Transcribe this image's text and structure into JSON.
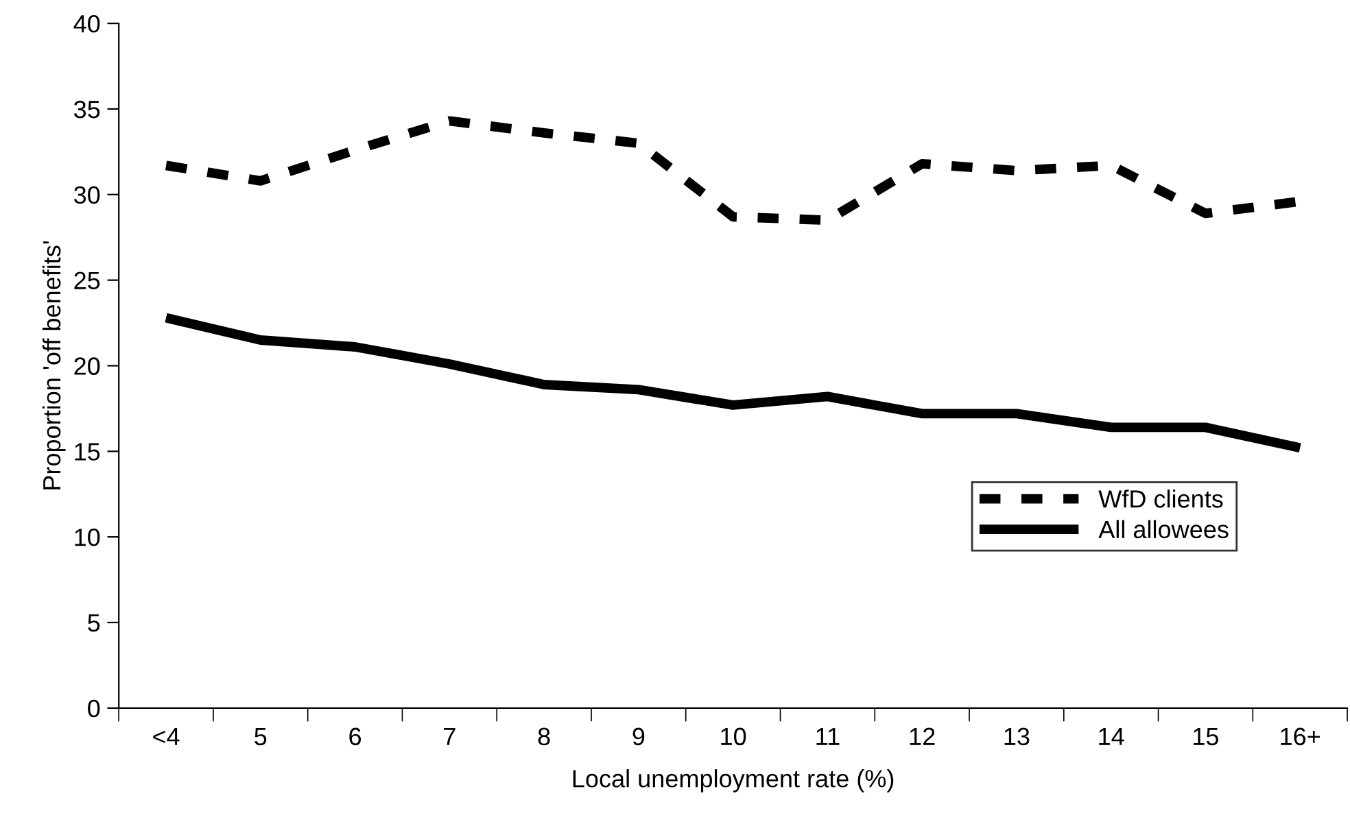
{
  "chart_data": {
    "type": "line",
    "xlabel": "Local unemployment rate (%)",
    "ylabel": "Proportion 'off benefits'",
    "categories": [
      "<4",
      "5",
      "6",
      "7",
      "8",
      "9",
      "10",
      "11",
      "12",
      "13",
      "14",
      "15",
      "16+"
    ],
    "series": [
      {
        "name": "WfD clients",
        "color": "#000000",
        "line_style": "dashed",
        "values": [
          31.7,
          30.8,
          32.6,
          34.3,
          33.6,
          33.0,
          28.7,
          28.5,
          31.8,
          31.4,
          31.7,
          28.9,
          29.6
        ]
      },
      {
        "name": "All allowees",
        "color": "#000000",
        "line_style": "solid",
        "values": [
          22.8,
          21.5,
          21.1,
          20.1,
          18.9,
          18.6,
          17.7,
          18.2,
          17.2,
          17.2,
          16.4,
          16.4,
          15.2
        ]
      }
    ],
    "ylim": [
      0,
      40
    ],
    "yticks": [
      0,
      5,
      10,
      15,
      20,
      25,
      30,
      35,
      40
    ],
    "grid": false,
    "legend": "right",
    "marker": "none"
  }
}
